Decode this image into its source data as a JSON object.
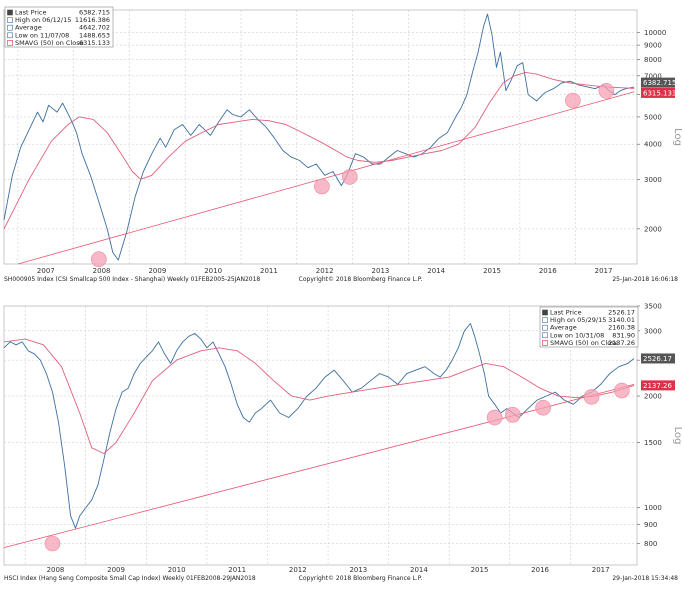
{
  "colors": {
    "price": "#3d6fa1",
    "sma": "#e0607a",
    "trend": "#e8556f",
    "marker": "#f5a0b4",
    "grid": "#c4c4c4",
    "last_bg": "#555555",
    "sma_bg": "#d9324a"
  },
  "chart_data": [
    {
      "type": "line",
      "log_scale": true,
      "ylim": [
        1500,
        12000
      ],
      "xlim": [
        2006.75,
        2018.1
      ],
      "x_tick_labels": [
        "2007",
        "2008",
        "2009",
        "2010",
        "2011",
        "2012",
        "2013",
        "2014",
        "2015",
        "2016",
        "2017"
      ],
      "y_tick_values": [
        2000,
        3000,
        4000,
        5000,
        6000,
        7000,
        8000,
        9000,
        10000
      ],
      "y_tick_labels": [
        "2000",
        "3000",
        "4000",
        "5000",
        "6000",
        "7000",
        "8000",
        "9000",
        "10000"
      ],
      "ylabel": "Log",
      "legend": [
        {
          "label": "Last Price",
          "value": "6382.715"
        },
        {
          "label": "High on 06/12/15",
          "value": "11616.386"
        },
        {
          "label": "Average",
          "value": "4642.702"
        },
        {
          "label": "Low on 11/07/08",
          "value": "1488.653"
        },
        {
          "label": "SMAVG (50) on Close",
          "value": "6315.133"
        }
      ],
      "last_price_tag": "6382.715",
      "sma_tag": "6315.133",
      "footer_left": "SH000905 Index (CSI Smallcap 500 Index - Shanghai)  Weekly 01FEB2005-25JAN2018",
      "footer_mid": "Copyright© 2018 Bloomberg Finance L.P.",
      "footer_right": "25-Jan-2018 16:06:18",
      "series": [
        {
          "name": "Price",
          "x": [
            2006.75,
            2006.9,
            2007.05,
            2007.2,
            2007.35,
            2007.45,
            2007.55,
            2007.7,
            2007.8,
            2007.95,
            2008.05,
            2008.15,
            2008.3,
            2008.45,
            2008.6,
            2008.7,
            2008.8,
            2008.95,
            2009.1,
            2009.25,
            2009.4,
            2009.55,
            2009.65,
            2009.8,
            2009.95,
            2010.1,
            2010.25,
            2010.35,
            2010.45,
            2010.6,
            2010.75,
            2010.85,
            2011.0,
            2011.15,
            2011.3,
            2011.45,
            2011.6,
            2011.75,
            2011.9,
            2012.05,
            2012.2,
            2012.35,
            2012.5,
            2012.65,
            2012.8,
            2012.9,
            2013.05,
            2013.2,
            2013.35,
            2013.5,
            2013.65,
            2013.8,
            2013.95,
            2014.1,
            2014.25,
            2014.4,
            2014.55,
            2014.7,
            2014.85,
            2014.95,
            2015.05,
            2015.15,
            2015.25,
            2015.35,
            2015.42,
            2015.5,
            2015.58,
            2015.65,
            2015.75,
            2015.85,
            2015.95,
            2016.05,
            2016.15,
            2016.3,
            2016.45,
            2016.6,
            2016.75,
            2016.9,
            2017.05,
            2017.2,
            2017.35,
            2017.5,
            2017.6,
            2017.7,
            2017.8,
            2017.9,
            2018.05
          ],
          "y": [
            2150,
            3100,
            3900,
            4500,
            5200,
            4800,
            5500,
            5200,
            5600,
            4900,
            4400,
            3700,
            3100,
            2500,
            2000,
            1650,
            1550,
            1950,
            2600,
            3200,
            3700,
            4200,
            3900,
            4500,
            4700,
            4300,
            4700,
            4500,
            4300,
            4800,
            5300,
            5100,
            5000,
            5300,
            4900,
            4600,
            4200,
            3800,
            3600,
            3500,
            3300,
            3400,
            3100,
            3200,
            2850,
            3100,
            3700,
            3600,
            3400,
            3400,
            3600,
            3800,
            3700,
            3600,
            3700,
            3900,
            4200,
            4400,
            5000,
            5400,
            6000,
            7200,
            8500,
            10500,
            11600,
            9800,
            7500,
            8500,
            6200,
            6800,
            7600,
            7800,
            6000,
            5700,
            6100,
            6300,
            6600,
            6700,
            6500,
            6400,
            6300,
            6500,
            6200,
            6000,
            6200,
            6300,
            6383
          ]
        },
        {
          "name": "SMAVG (50) on Close",
          "x": [
            2006.75,
            2007.2,
            2007.6,
            2007.9,
            2008.1,
            2008.35,
            2008.6,
            2008.85,
            2009.05,
            2009.2,
            2009.4,
            2009.7,
            2010.0,
            2010.3,
            2010.6,
            2010.9,
            2011.2,
            2011.5,
            2011.8,
            2012.1,
            2012.4,
            2012.7,
            2012.9,
            2013.1,
            2013.4,
            2013.7,
            2014.0,
            2014.3,
            2014.6,
            2014.9,
            2015.2,
            2015.45,
            2015.7,
            2015.9,
            2016.1,
            2016.3,
            2016.6,
            2016.9,
            2017.2,
            2017.5,
            2017.8,
            2018.05
          ],
          "y": [
            2000,
            3000,
            4100,
            4700,
            5000,
            4900,
            4400,
            3700,
            3200,
            3000,
            3100,
            3600,
            4100,
            4400,
            4700,
            4800,
            4900,
            4850,
            4700,
            4400,
            4100,
            3800,
            3600,
            3500,
            3450,
            3500,
            3600,
            3700,
            3800,
            4000,
            4600,
            5600,
            6600,
            7000,
            7200,
            7100,
            6800,
            6600,
            6500,
            6400,
            6350,
            6315
          ]
        },
        {
          "name": "Trend",
          "x": [
            2007.0,
            2018.05
          ],
          "y": [
            1500,
            6150
          ]
        }
      ],
      "markers": [
        {
          "x": 2008.45,
          "y": 1560
        },
        {
          "x": 2012.45,
          "y": 2830
        },
        {
          "x": 2012.95,
          "y": 3060
        },
        {
          "x": 2016.95,
          "y": 5720
        },
        {
          "x": 2017.55,
          "y": 6190
        }
      ]
    },
    {
      "type": "line",
      "log_scale": true,
      "ylim": [
        700,
        3500
      ],
      "xlim": [
        2007.65,
        2018.1
      ],
      "x_tick_labels": [
        "2008",
        "2009",
        "2010",
        "2011",
        "2012",
        "2013",
        "2014",
        "2015",
        "2016",
        "2017"
      ],
      "y_tick_values": [
        800,
        900,
        1000,
        1500,
        2000,
        2500,
        3000,
        3500
      ],
      "y_tick_labels": [
        "800",
        "900",
        "1000",
        "1500",
        "2000",
        "2500",
        "3000",
        "3500"
      ],
      "ylabel": "Log",
      "legend": [
        {
          "label": "Last Price",
          "value": "2526.17"
        },
        {
          "label": "High on 05/29/15",
          "value": "3140.01"
        },
        {
          "label": "Average",
          "value": "2160.38"
        },
        {
          "label": "Low on 10/31/08",
          "value": "831.90"
        },
        {
          "label": "SMAVG (50) on Close",
          "value": "2137.26"
        }
      ],
      "last_price_tag": "2526.17",
      "sma_tag": "2137.26",
      "footer_left": "HSCI Index (Hang Seng Composite Small Cap Index)  Weekly 01FEB2008-29JAN2018",
      "footer_mid": "Copyright© 2018 Bloomberg Finance L.P.",
      "footer_right": "29-Jan-2018 15:34:48",
      "series": [
        {
          "name": "Price",
          "x": [
            2007.65,
            2007.75,
            2007.85,
            2007.95,
            2008.05,
            2008.15,
            2008.25,
            2008.35,
            2008.45,
            2008.55,
            2008.65,
            2008.75,
            2008.83,
            2008.9,
            2009.0,
            2009.1,
            2009.2,
            2009.3,
            2009.4,
            2009.5,
            2009.6,
            2009.7,
            2009.8,
            2009.9,
            2010.0,
            2010.1,
            2010.2,
            2010.3,
            2010.4,
            2010.5,
            2010.6,
            2010.7,
            2010.8,
            2010.9,
            2011.0,
            2011.1,
            2011.2,
            2011.3,
            2011.4,
            2011.5,
            2011.6,
            2011.7,
            2011.8,
            2011.9,
            2012.05,
            2012.2,
            2012.35,
            2012.5,
            2012.65,
            2012.8,
            2012.95,
            2013.1,
            2013.25,
            2013.4,
            2013.55,
            2013.7,
            2013.85,
            2014.0,
            2014.15,
            2014.3,
            2014.45,
            2014.6,
            2014.75,
            2014.85,
            2014.95,
            2015.05,
            2015.15,
            2015.25,
            2015.35,
            2015.42,
            2015.5,
            2015.58,
            2015.65,
            2015.75,
            2015.85,
            2015.95,
            2016.05,
            2016.15,
            2016.3,
            2016.45,
            2016.6,
            2016.75,
            2016.9,
            2017.05,
            2017.2,
            2017.35,
            2017.5,
            2017.65,
            2017.8,
            2017.95,
            2018.05
          ],
          "y": [
            2700,
            2800,
            2750,
            2800,
            2650,
            2600,
            2500,
            2300,
            2050,
            1700,
            1300,
            950,
            880,
            950,
            1000,
            1050,
            1150,
            1350,
            1600,
            1850,
            2050,
            2100,
            2300,
            2450,
            2550,
            2650,
            2800,
            2600,
            2450,
            2650,
            2800,
            2900,
            2950,
            2850,
            2700,
            2800,
            2600,
            2400,
            2150,
            1900,
            1750,
            1700,
            1800,
            1850,
            1950,
            1800,
            1750,
            1850,
            2000,
            2100,
            2250,
            2350,
            2200,
            2050,
            2100,
            2200,
            2300,
            2250,
            2150,
            2300,
            2350,
            2400,
            2300,
            2250,
            2350,
            2500,
            2700,
            3000,
            3140,
            2900,
            2600,
            2300,
            2000,
            1900,
            1800,
            1850,
            1800,
            1750,
            1850,
            1950,
            2000,
            2050,
            1950,
            1900,
            2000,
            2050,
            2150,
            2300,
            2400,
            2450,
            2526
          ]
        },
        {
          "name": "SMAVG (50) on Close",
          "x": [
            2007.65,
            2008.0,
            2008.3,
            2008.6,
            2008.9,
            2009.1,
            2009.3,
            2009.5,
            2009.8,
            2010.1,
            2010.5,
            2010.9,
            2011.2,
            2011.5,
            2011.8,
            2012.1,
            2012.4,
            2012.7,
            2013.0,
            2013.4,
            2013.8,
            2014.2,
            2014.6,
            2015.0,
            2015.3,
            2015.6,
            2015.9,
            2016.2,
            2016.5,
            2016.8,
            2017.1,
            2017.4,
            2017.7,
            2018.05
          ],
          "y": [
            2800,
            2850,
            2750,
            2400,
            1800,
            1450,
            1400,
            1500,
            1800,
            2200,
            2500,
            2650,
            2700,
            2650,
            2450,
            2200,
            2000,
            1950,
            2000,
            2050,
            2100,
            2150,
            2200,
            2250,
            2350,
            2450,
            2400,
            2250,
            2100,
            2000,
            1980,
            2000,
            2050,
            2137
          ]
        },
        {
          "name": "Trend",
          "x": [
            2007.65,
            2018.05
          ],
          "y": [
            780,
            2150
          ]
        }
      ],
      "markers": [
        {
          "x": 2008.45,
          "y": 800
        },
        {
          "x": 2015.75,
          "y": 1750
        },
        {
          "x": 2016.05,
          "y": 1780
        },
        {
          "x": 2016.55,
          "y": 1860
        },
        {
          "x": 2017.35,
          "y": 1990
        },
        {
          "x": 2017.85,
          "y": 2070
        }
      ]
    }
  ]
}
